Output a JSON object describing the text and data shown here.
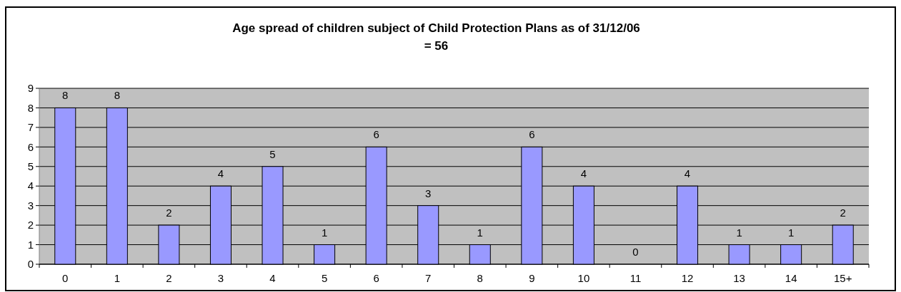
{
  "chart_data": {
    "type": "bar",
    "title": "Age spread of children subject of Child Protection Plans as of 31/12/06\n= 56",
    "categories": [
      "0",
      "1",
      "2",
      "3",
      "4",
      "5",
      "6",
      "7",
      "8",
      "9",
      "10",
      "11",
      "12",
      "13",
      "14",
      "15+"
    ],
    "values": [
      8,
      8,
      2,
      4,
      5,
      1,
      6,
      3,
      1,
      6,
      4,
      0,
      4,
      1,
      1,
      2
    ],
    "color": "#9999ff",
    "ylim": [
      0,
      9
    ],
    "yticks": [
      0,
      1,
      2,
      3,
      4,
      5,
      6,
      7,
      8,
      9
    ],
    "grid": "y",
    "data_labels": true
  }
}
